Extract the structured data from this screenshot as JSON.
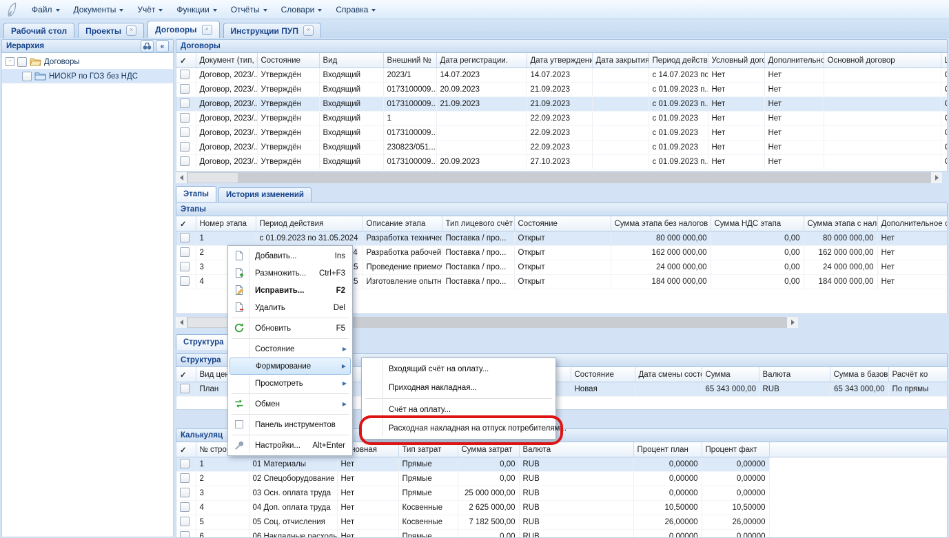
{
  "colors": {
    "accent": "#15428b",
    "selection": "#dbe9f9",
    "annotation": "#dd1414"
  },
  "menubar": {
    "items": [
      {
        "label": "Файл"
      },
      {
        "label": "Документы"
      },
      {
        "label": "Учёт"
      },
      {
        "label": "Функции"
      },
      {
        "label": "Отчёты"
      },
      {
        "label": "Словари"
      },
      {
        "label": "Справка"
      }
    ]
  },
  "tabbar": {
    "tabs": [
      {
        "label": "Рабочий стол",
        "closable": false,
        "active": false
      },
      {
        "label": "Проекты",
        "closable": true,
        "active": false
      },
      {
        "label": "Договоры",
        "closable": true,
        "active": true
      },
      {
        "label": "Инструкции ПУП",
        "closable": true,
        "active": false
      }
    ]
  },
  "sidebar": {
    "title": "Иерархия",
    "tree": [
      {
        "label": "Договоры",
        "level": 0,
        "icon": "open-folder",
        "selected": false
      },
      {
        "label": "НИОКР по ГОЗ без НДС",
        "level": 1,
        "icon": "folder",
        "selected": true
      }
    ]
  },
  "contracts": {
    "title": "Договоры",
    "selected_row": 2,
    "columns": [
      "",
      "Документ (тип, №",
      "Состояние",
      "Вид",
      "Внешний №",
      "Дата регистрации.",
      "Дата утверждения",
      "Дата закрытия",
      "Период действия...",
      "Условный договор",
      "Дополнительное с",
      "Основной договор",
      "Ц"
    ],
    "rows": [
      [
        "",
        "Договор, 2023/...",
        "Утверждён",
        "Входящий",
        "2023/1",
        "14.07.2023",
        "14.07.2023",
        "",
        "с 14.07.2023 по...",
        "Нет",
        "Нет",
        "",
        "С"
      ],
      [
        "",
        "Договор, 2023/...",
        "Утверждён",
        "Входящий",
        "0173100009...",
        "20.09.2023",
        "21.09.2023",
        "",
        "с 01.09.2023 п...",
        "Нет",
        "Нет",
        "",
        "С"
      ],
      [
        "",
        "Договор, 2023/...",
        "Утверждён",
        "Входящий",
        "0173100009...",
        "21.09.2023",
        "21.09.2023",
        "",
        "с 01.09.2023 п...",
        "Нет",
        "Нет",
        "",
        "С"
      ],
      [
        "",
        "Договор, 2023/...",
        "Утверждён",
        "Входящий",
        "1",
        "",
        "22.09.2023",
        "",
        "с 01.09.2023",
        "Нет",
        "Нет",
        "",
        "С"
      ],
      [
        "",
        "Договор, 2023/...",
        "Утверждён",
        "Входящий",
        "0173100009...",
        "",
        "22.09.2023",
        "",
        "с 01.09.2023",
        "Нет",
        "Нет",
        "",
        "С"
      ],
      [
        "",
        "Договор, 2023/...",
        "Утверждён",
        "Входящий",
        "230823/051...",
        "",
        "22.09.2023",
        "",
        "с 01.09.2023",
        "Нет",
        "Нет",
        "",
        "С"
      ],
      [
        "",
        "Договор, 2023/...",
        "Утверждён",
        "Входящий",
        "0173100009...",
        "20.09.2023",
        "27.10.2023",
        "",
        "с 01.09.2023 п...",
        "Нет",
        "Нет",
        "",
        "С"
      ]
    ]
  },
  "stages_tabs": {
    "tabs": [
      {
        "label": "Этапы",
        "active": true
      },
      {
        "label": "История изменений",
        "active": false
      }
    ]
  },
  "stages": {
    "title": "Этапы",
    "selected_row": 0,
    "columns": [
      "",
      "Номер этапа",
      "Период действия",
      "Описание этапа",
      "Тип лицевого счёт",
      "Состояние",
      "Сумма этапа без налогов",
      "Сумма НДС этапа",
      "Сумма этапа с налогами",
      "Дополнительное с"
    ],
    "rows": [
      [
        "",
        "1",
        "с 01.09.2023 по 31.05.2024",
        "Разработка технического...",
        "Поставка / про...",
        "Открыт",
        "80 000 000,00",
        "0,00",
        "80 000 000,00",
        "Нет"
      ],
      [
        "",
        "2",
        "с 01.09.2023 по 30.11.2024",
        "Разработка рабочей конс...",
        "Поставка / про...",
        "Открыт",
        "162 000 000,00",
        "0,00",
        "162 000 000,00",
        "Нет"
      ],
      [
        "",
        "3",
        "с 01.12.2024 по 31.03.2025",
        "Проведение приемочных...",
        "Поставка / про...",
        "Открыт",
        "24 000 000,00",
        "0,00",
        "24 000 000,00",
        "Нет"
      ],
      [
        "",
        "4",
        "с 01.12.2024 по 31.05.2025",
        "Изготовление опытных о...",
        "Поставка / про...",
        "Открыт",
        "184 000 000,00",
        "0,00",
        "184 000 000,00",
        "Нет"
      ]
    ]
  },
  "structure_tab": {
    "label": "Структура"
  },
  "structure": {
    "title": "Структура",
    "selected_row": 0,
    "columns": [
      "",
      "Вид цен",
      "",
      "Состояние",
      "Дата смены состоя",
      "Сумма",
      "Валюта",
      "Сумма в базовой в",
      "Расчёт ко"
    ],
    "rows": [
      [
        "",
        "План",
        "",
        "Новая",
        "",
        "65 343 000,00",
        "RUB",
        "65 343 000,00",
        "По прямы"
      ]
    ]
  },
  "calc": {
    "title": "Калькуляц",
    "selected_row": 0,
    "columns": [
      "",
      "№ стро",
      "",
      "Основная",
      "Тип затрат",
      "Сумма затрат",
      "Валюта",
      "Процент план",
      "Процент факт"
    ],
    "rows": [
      [
        "",
        "1",
        "01 Материалы",
        "Нет",
        "Прямые",
        "0,00",
        "RUB",
        "0,00000",
        "0,00000"
      ],
      [
        "",
        "2",
        "02 Спецоборудование",
        "Нет",
        "Прямые",
        "0,00",
        "RUB",
        "0,00000",
        "0,00000"
      ],
      [
        "",
        "3",
        "03 Осн. оплата труда",
        "Нет",
        "Прямые",
        "25 000 000,00",
        "RUB",
        "0,00000",
        "0,00000"
      ],
      [
        "",
        "4",
        "04 Доп. оплата труда",
        "Нет",
        "Косвенные",
        "2 625 000,00",
        "RUB",
        "10,50000",
        "10,50000"
      ],
      [
        "",
        "5",
        "05 Соц. отчисления",
        "Нет",
        "Косвенные",
        "7 182 500,00",
        "RUB",
        "26,00000",
        "26,00000"
      ],
      [
        "",
        "6",
        "06 Накладные расходы",
        "Нет",
        "Прямые",
        "0,00",
        "RUB",
        "0,00000",
        "0,00000"
      ]
    ]
  },
  "context_menu": {
    "items": [
      {
        "type": "item",
        "icon": "page-icon",
        "label": "Добавить...",
        "shortcut": "Ins"
      },
      {
        "type": "item",
        "icon": "page-plus-icon",
        "label": "Размножить...",
        "shortcut": "Ctrl+F3"
      },
      {
        "type": "item",
        "icon": "page-edit-icon",
        "label": "Исправить...",
        "shortcut": "F2",
        "bold": true
      },
      {
        "type": "item",
        "icon": "page-minus-icon",
        "label": "Удалить",
        "shortcut": "Del"
      },
      {
        "type": "sep"
      },
      {
        "type": "item",
        "icon": "refresh-icon",
        "label": "Обновить",
        "shortcut": "F5"
      },
      {
        "type": "sep"
      },
      {
        "type": "item",
        "label": "Состояние",
        "submenu": true
      },
      {
        "type": "item",
        "label": "Формирование",
        "submenu": true,
        "highlighted": true
      },
      {
        "type": "item",
        "label": "Просмотреть",
        "submenu": true
      },
      {
        "type": "sep"
      },
      {
        "type": "item",
        "icon": "exchange-icon",
        "label": "Обмен",
        "submenu": true
      },
      {
        "type": "sep"
      },
      {
        "type": "item",
        "icon": "checkbox-icon",
        "label": "Панель инструментов"
      },
      {
        "type": "sep"
      },
      {
        "type": "item",
        "icon": "wrench-icon",
        "label": "Настройки...",
        "shortcut": "Alt+Enter"
      }
    ]
  },
  "submenu": {
    "items": [
      {
        "type": "item",
        "label": "Входящий счёт на оплату..."
      },
      {
        "type": "item",
        "label": "Приходная накладная..."
      },
      {
        "type": "sep"
      },
      {
        "type": "item",
        "label": "Счёт на оплату..."
      },
      {
        "type": "item",
        "label": "Расходная накладная на отпуск потребителям...",
        "annotated": true
      }
    ]
  }
}
